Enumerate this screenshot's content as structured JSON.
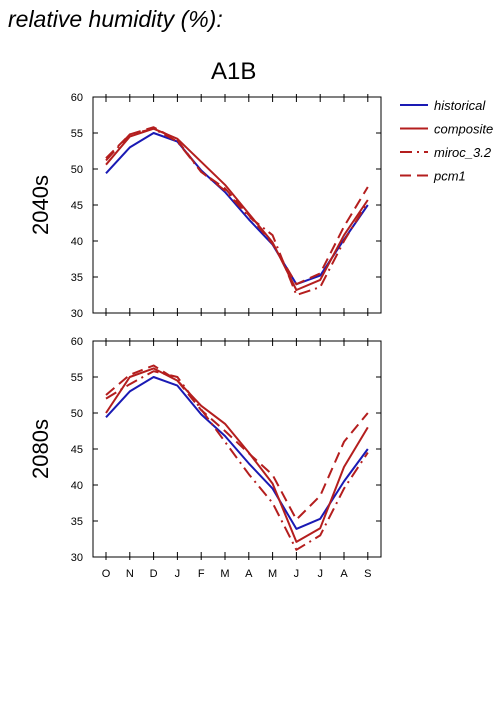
{
  "page": {
    "header": "relative humidity (%):",
    "scenario": "A1B"
  },
  "colors": {
    "historical": "#1a1ab4",
    "model": "#b41e1e"
  },
  "legend": [
    {
      "name": "historical",
      "style": "solid",
      "color": "#1a1ab4"
    },
    {
      "name": "composite",
      "style": "solid",
      "color": "#b41e1e"
    },
    {
      "name": "miroc_3.2",
      "style": "dashdot",
      "color": "#b41e1e"
    },
    {
      "name": "pcm1",
      "style": "dashed",
      "color": "#b41e1e"
    }
  ],
  "chart_data": [
    {
      "type": "line",
      "period": "2040s",
      "ylabel": "2040s",
      "categories": [
        "O",
        "N",
        "D",
        "J",
        "F",
        "M",
        "A",
        "M",
        "J",
        "J",
        "A",
        "S"
      ],
      "ylim": [
        30,
        60
      ],
      "yticks": [
        30,
        35,
        40,
        45,
        50,
        55,
        60
      ],
      "series": [
        {
          "name": "historical",
          "style": "solid",
          "values": [
            49.4,
            53.0,
            55.0,
            53.8,
            49.8,
            46.8,
            43.0,
            39.5,
            34.0,
            35.2,
            40.2,
            45.0
          ]
        },
        {
          "name": "composite",
          "style": "solid",
          "values": [
            50.6,
            54.5,
            55.6,
            54.2,
            51.0,
            47.8,
            43.8,
            39.8,
            33.2,
            34.6,
            40.8,
            45.7
          ]
        },
        {
          "name": "miroc_3.2",
          "style": "dashdot",
          "values": [
            51.2,
            54.8,
            55.6,
            53.8,
            49.6,
            47.0,
            43.4,
            40.8,
            32.5,
            33.6,
            40.0,
            45.4
          ]
        },
        {
          "name": "pcm1",
          "style": "dashed",
          "values": [
            51.5,
            54.8,
            55.8,
            54.0,
            49.6,
            47.3,
            43.6,
            39.6,
            34.0,
            35.5,
            42.0,
            47.5
          ]
        }
      ]
    },
    {
      "type": "line",
      "period": "2080s",
      "ylabel": "2080s",
      "categories": [
        "O",
        "N",
        "D",
        "J",
        "F",
        "M",
        "A",
        "M",
        "J",
        "J",
        "A",
        "S"
      ],
      "ylim": [
        30,
        60
      ],
      "yticks": [
        30,
        35,
        40,
        45,
        50,
        55,
        60
      ],
      "series": [
        {
          "name": "historical",
          "style": "solid",
          "values": [
            49.4,
            53.0,
            55.0,
            53.8,
            49.8,
            46.8,
            43.0,
            39.5,
            33.9,
            35.3,
            40.5,
            45.0
          ]
        },
        {
          "name": "composite",
          "style": "solid",
          "values": [
            50.0,
            55.0,
            56.2,
            54.5,
            51.0,
            48.5,
            44.5,
            40.2,
            32.1,
            34.0,
            42.5,
            48.0
          ]
        },
        {
          "name": "miroc_3.2",
          "style": "dashdot",
          "values": [
            52.0,
            54.0,
            55.8,
            55.0,
            50.5,
            46.0,
            41.5,
            37.5,
            31.0,
            33.0,
            39.5,
            44.5
          ]
        },
        {
          "name": "pcm1",
          "style": "dashed",
          "values": [
            52.5,
            55.3,
            56.6,
            54.5,
            50.4,
            47.5,
            44.4,
            41.4,
            35.2,
            38.5,
            46.0,
            50.0
          ]
        }
      ]
    }
  ]
}
